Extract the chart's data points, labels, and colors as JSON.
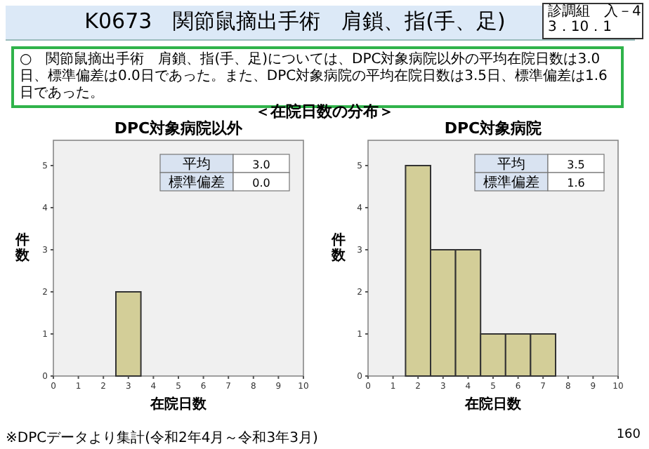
{
  "chart_data": [
    {
      "type": "histogram",
      "title": "DPC対象病院以外",
      "xlabel": "在院日数",
      "ylabel": "件数",
      "bins": [
        2.5,
        3.5
      ],
      "values": [
        2
      ],
      "color": "#d3ce98",
      "xlim": [
        0,
        10
      ],
      "ylim": [
        0,
        5.6
      ],
      "xticks": [
        0,
        1,
        2,
        3,
        4,
        5,
        6,
        7,
        8,
        9,
        10
      ],
      "yticks": [
        0,
        1,
        2,
        3,
        4,
        5
      ],
      "annotations": [
        "平均",
        "3.0",
        "標準偏差",
        "0.0",
        "K0673　関節鼠摘出手術　肩鎖、指(手、足)",
        "診調組　入－4",
        "3．10．1",
        "○　関節鼠摘出手術　肩鎖、指(手、足)については、DPC対象病院以外の平均在院日数は3.0日、標準偏差は0.0日であった。また、DPC対象病院の平均在院日数は3.5日、標準偏差は1.6日であった。",
        "＜在院日数の分布＞",
        "※DPCデータより集計(令和2年4月～令和3年3月)"
      ]
    },
    {
      "type": "histogram",
      "title": "DPC対象病院",
      "xlabel": "在院日数",
      "ylabel": "件数",
      "bins": [
        1.5,
        2.5,
        3.5,
        4.5,
        5.5,
        6.5,
        7.5
      ],
      "values": [
        5,
        3,
        3,
        1,
        1,
        1
      ],
      "color": "#d3ce98",
      "xlim": [
        0,
        10
      ],
      "ylim": [
        0,
        5.6
      ],
      "xticks": [
        0,
        1,
        2,
        3,
        4,
        5,
        6,
        7,
        8,
        9,
        10
      ],
      "yticks": [
        0,
        1,
        2,
        3,
        4,
        5
      ],
      "annotations": [
        "平均",
        "3.5",
        "標準偏差",
        "1.6",
        "160"
      ]
    }
  ]
}
